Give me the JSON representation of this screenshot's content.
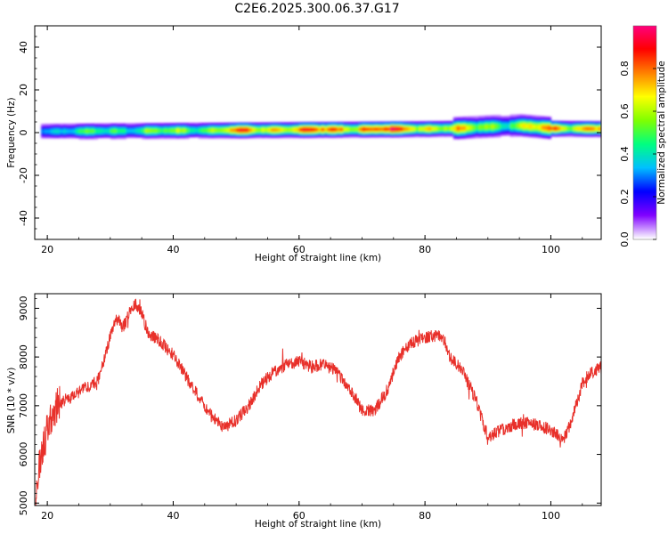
{
  "title": "C2E6.2025.300.06.37.G17",
  "colors": {
    "snr_line": "#e8302a",
    "colorbar": [
      "#ffffff",
      "#8000ff",
      "#0000ff",
      "#00c0ff",
      "#00ff80",
      "#80ff00",
      "#ffff00",
      "#ff8000",
      "#ff0000",
      "#ff0080"
    ]
  },
  "chart_data": [
    {
      "type": "heatmap",
      "name": "spectrogram",
      "xlabel": "Height of straight line (km)",
      "ylabel": "Frequency (Hz)",
      "xlim": [
        18,
        108
      ],
      "ylim": [
        -50,
        50
      ],
      "xticks": [
        20,
        40,
        60,
        80,
        100
      ],
      "yticks": [
        -40,
        -20,
        0,
        20,
        40
      ],
      "colorbar": {
        "label": "Normalized spectral amplitude",
        "range": [
          0.0,
          1.0
        ],
        "ticks": [
          "0.0",
          "0.2",
          "0.4",
          "0.6",
          "0.8"
        ]
      },
      "band_center_hz": [
        {
          "x": 19,
          "f": 0.8,
          "amp": 0.45
        },
        {
          "x": 25,
          "f": 0.9,
          "amp": 0.5
        },
        {
          "x": 30,
          "f": 1.0,
          "amp": 0.55
        },
        {
          "x": 35,
          "f": 1.1,
          "amp": 0.6
        },
        {
          "x": 40,
          "f": 1.2,
          "amp": 0.6
        },
        {
          "x": 45,
          "f": 1.3,
          "amp": 0.7
        },
        {
          "x": 50,
          "f": 1.4,
          "amp": 0.85
        },
        {
          "x": 55,
          "f": 1.5,
          "amp": 0.85
        },
        {
          "x": 60,
          "f": 1.6,
          "amp": 0.9
        },
        {
          "x": 65,
          "f": 1.7,
          "amp": 0.92
        },
        {
          "x": 70,
          "f": 1.8,
          "amp": 0.95
        },
        {
          "x": 75,
          "f": 1.9,
          "amp": 0.95
        },
        {
          "x": 80,
          "f": 2.0,
          "amp": 0.9
        },
        {
          "x": 85,
          "f": 2.2,
          "amp": 0.75
        },
        {
          "x": 90,
          "f": 3.0,
          "amp": 0.65
        },
        {
          "x": 95,
          "f": 3.5,
          "amp": 0.7
        },
        {
          "x": 100,
          "f": 2.2,
          "amp": 0.85
        },
        {
          "x": 108,
          "f": 2.0,
          "amp": 0.9
        }
      ]
    },
    {
      "type": "line",
      "name": "snr",
      "xlabel": "Height of straight line (km)",
      "ylabel": "SNR (10 * v/v)",
      "xlim": [
        18,
        108
      ],
      "ylim": [
        4950,
        9300
      ],
      "xticks": [
        20,
        40,
        60,
        80,
        100
      ],
      "yticks": [
        5000,
        6000,
        7000,
        8000,
        9000
      ],
      "x": [
        18,
        19,
        20,
        21,
        22,
        24,
        26,
        28,
        30,
        31,
        32,
        33,
        34,
        35,
        36,
        38,
        40,
        42,
        44,
        46,
        48,
        50,
        52,
        54,
        56,
        58,
        60,
        62,
        64,
        66,
        68,
        70,
        72,
        74,
        76,
        78,
        80,
        82,
        83,
        84,
        86,
        88,
        90,
        92,
        94,
        96,
        98,
        100,
        102,
        103,
        104,
        105,
        106,
        108
      ],
      "values": [
        5050,
        6000,
        6500,
        6900,
        7050,
        7200,
        7350,
        7500,
        8400,
        8800,
        8600,
        8900,
        9100,
        8900,
        8500,
        8300,
        8050,
        7600,
        7200,
        6800,
        6550,
        6700,
        7000,
        7450,
        7700,
        7850,
        7900,
        7800,
        7850,
        7700,
        7350,
        6900,
        6900,
        7300,
        8050,
        8300,
        8400,
        8450,
        8350,
        8000,
        7700,
        7150,
        6350,
        6500,
        6600,
        6650,
        6600,
        6500,
        6300,
        6600,
        7000,
        7450,
        7650,
        7800
      ]
    }
  ]
}
